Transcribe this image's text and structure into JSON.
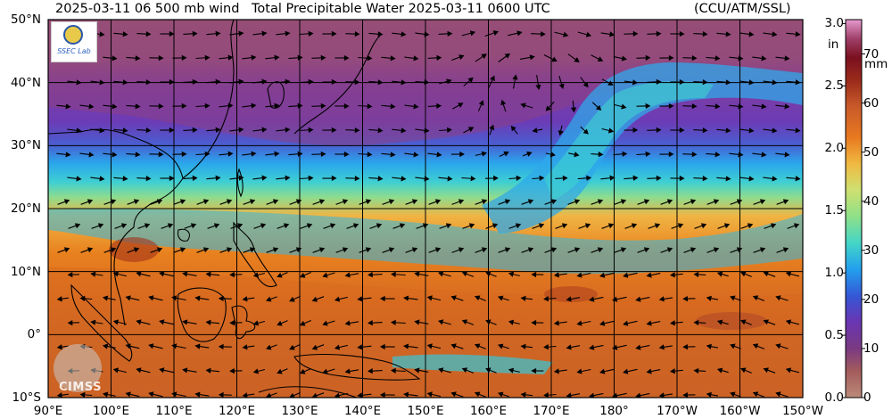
{
  "header": {
    "left_text": "2025-03-11 06 500 mb wind",
    "title": "Total Precipitable Water  2025-03-11 0600 UTC",
    "right_text": "(CCU/ATM/SSL)"
  },
  "map": {
    "lat_labels": [
      "50°N",
      "40°N",
      "30°N",
      "20°N",
      "10°N",
      "0°",
      "10°S"
    ],
    "lon_labels": [
      "90°E",
      "100°E",
      "110°E",
      "120°E",
      "130°E",
      "140°E",
      "150°E",
      "160°E",
      "170°E",
      "180°",
      "170°W",
      "160°W",
      "150°W"
    ],
    "lat_range": [
      -10,
      50
    ],
    "lon_range_east": [
      90,
      210
    ],
    "graticule_step_deg": 10
  },
  "colorbar": {
    "unit_left": "in",
    "unit_right": "mm",
    "inch_ticks": [
      "3.0",
      "2.5",
      "2.0",
      "1.5",
      "1.0",
      "0.5",
      "0.0"
    ],
    "mm_ticks": [
      "70",
      "60",
      "50",
      "40",
      "30",
      "20",
      "10",
      "0"
    ],
    "range_mm": [
      0,
      77
    ],
    "colors": [
      "#bc8a7a",
      "#a35c5c",
      "#7a3a82",
      "#6a35b2",
      "#3458d6",
      "#22a0ee",
      "#45d6c6",
      "#8fe088",
      "#cfe070",
      "#f0b840",
      "#e87820",
      "#c85a2a",
      "#9a2a1a",
      "#7a1020",
      "#a0406a",
      "#e69ad0"
    ]
  },
  "logos": {
    "top_text": "SSEC Lab",
    "bottom_text": "CIMSS"
  }
}
